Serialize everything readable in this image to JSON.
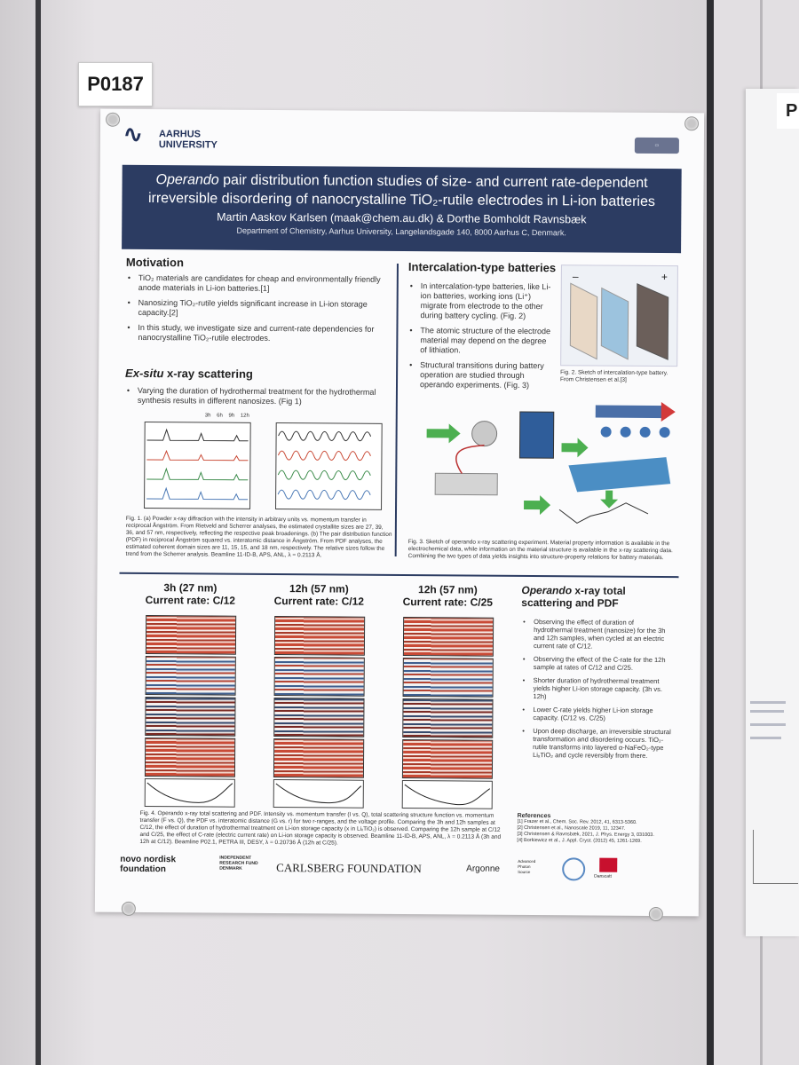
{
  "booth_label": "P0187",
  "side_poster": {
    "label": "P"
  },
  "poster": {
    "institution": "AARHUS\nUNIVERSITY",
    "title_italic": "Operando",
    "title_line1_rest": " pair distribution function studies of size- and current rate-dependent",
    "title_line2": "irreversible disordering of nanocrystalline TiO₂-rutile electrodes in Li-ion batteries",
    "authors": "Martin Aaskov Karlsen (maak@chem.au.dk) & Dorthe Bomholdt Ravnsbæk",
    "affiliation": "Department of Chemistry, Aarhus University, Langelandsgade 140, 8000 Aarhus C, Denmark.",
    "motivation": {
      "heading": "Motivation",
      "bullets": [
        "TiO₂ materials are candidates for cheap and environmentally friendly anode materials in Li-ion batteries.[1]",
        "Nanosizing TiO₂-rutile yields significant increase in Li-ion storage capacity.[2]",
        "In this study, we investigate size and current-rate dependencies for nanocrystalline TiO₂-rutile electrodes."
      ]
    },
    "exsitu": {
      "heading_italic": "Ex-situ",
      "heading_rest": " x-ray scattering",
      "bullets": [
        "Varying the duration of hydrothermal treatment for the hydrothermal synthesis results in different nanosizes. (Fig 1)"
      ],
      "legend": [
        "3h",
        "6h",
        "9h",
        "12h"
      ],
      "caption": "Fig. 1. (a) Powder x-ray diffraction with the intensity in arbitrary units vs. momentum transfer in reciprocal Ångström. From Rietveld and Scherrer analyses, the estimated crystallite sizes are 27, 39, 36, and 57 nm, respectively, reflecting the respective peak broadenings. (b) The pair distribution function (PDF) in reciprocal Ångström squared vs. interatomic distance in Ångström. From PDF analyses, the estimated coherent domain sizes are 11, 15, 15, and 18 nm, respectively. The relative sizes follow the trend from the Scherrer analysis. Beamline 11-ID-B, APS, ANL, λ = 0.2113 Å."
    },
    "intercalation": {
      "heading": "Intercalation-type batteries",
      "bullets": [
        "In intercalation-type batteries, like Li-ion batteries, working ions (Li⁺) migrate from electrode to the other during battery cycling. (Fig. 2)",
        "The atomic structure of the electrode material may depend on the degree of lithiation.",
        "Structural transitions during battery operation are studied through operando experiments. (Fig. 3)"
      ],
      "fig2_caption": "Fig. 2. Sketch of intercalation-type battery. From Christensen et al.[3]",
      "fig3_caption": "Fig. 3. Sketch of operando x-ray scattering experiment. Material property information is available in the electrochemical data, while information on the material structure is available in the x-ray scattering data. Combining the two types of data yields insights into structure-property relations for battery materials."
    },
    "operando": {
      "columns": [
        {
          "line1": "3h (27 nm)",
          "line2": "Current rate: C/12"
        },
        {
          "line1": "12h (57 nm)",
          "line2": "Current rate: C/12"
        },
        {
          "line1": "12h (57 nm)",
          "line2": "Current rate: C/25"
        }
      ],
      "heading_italic": "Operando",
      "heading_rest": " x-ray total scattering and PDF",
      "bullets": [
        "Observing the effect of duration of hydrothermal treatment (nanosize) for the 3h and 12h samples, when cycled at an electric current rate of C/12.",
        "Observing the effect of the C-rate for the 12h sample at rates of C/12 and C/25.",
        "Shorter duration of hydrothermal treatment yields higher Li-ion storage capacity. (3h vs. 12h)",
        "Lower C-rate yields higher Li-ion storage capacity. (C/12 vs. C/25)",
        "Upon deep discharge, an irreversible structural transformation and disordering occurs. TiO₂-rutile transforms into layered α-NaFeO₂-type LiₓTiO₂ and cycle reversibly from there."
      ],
      "caption": "Fig. 4. Operando x-ray total scattering and PDF. Intensity vs. momentum transfer (I vs. Q), total scattering structure function vs. momentum transfer (F vs. Q), the PDF vs. interatomic distance (G vs. r) for two r-ranges, and the voltage profile. Comparing the 3h and 12h samples at C/12, the effect of duration of hydrothermal treatment on Li-ion storage capacity (x in LiₓTiO₂) is observed. Comparing the 12h sample at C/12 and C/25, the effect of C-rate (electric current rate) on Li-ion storage capacity is observed. Beamline 11-ID-B, APS, ANL, λ = 0.2113 Å (3h and 12h at C/12). Beamline P02.1, PETRA III, DESY, λ = 0.20736 Å (12h at C/25)."
    },
    "references": {
      "heading": "References",
      "items": [
        "[1] Frazer et al., Chem. Soc. Rev. 2012, 41, 6313-5360.",
        "[2] Christensen et al., Nanoscale 2019, 11, 12347.",
        "[3] Christensen & Ravnsbæk, 2021, J. Phys. Energy 3, 031003.",
        "[4] Borkiewicz et al., J. Appl. Cryst. (2012) 45, 1261-1269."
      ]
    },
    "sponsors": {
      "novo": "novo nordisk\nfoundation",
      "irfd": "INDEPENDENT\nRESEARCH FUND\nDENMARK",
      "carlsberg": "CARLSBERG FOUNDATION",
      "argonne": "Argonne",
      "aps": "Advanced\nPhoton\nSource",
      "danscatt": "Danscatt"
    }
  },
  "colors": {
    "banner": "#2c3c62",
    "accent_red": "#c94a36",
    "accent_blue": "#3f5f8f",
    "arrow_green": "#4caf50"
  }
}
